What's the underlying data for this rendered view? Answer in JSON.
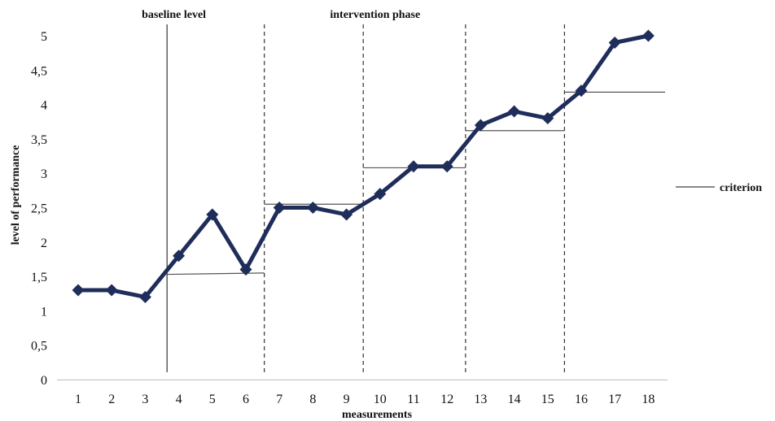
{
  "chart_data": {
    "type": "line",
    "title": "",
    "xlabel": "measurements",
    "ylabel": "level of performance",
    "x": [
      "1",
      "2",
      "3",
      "4",
      "5",
      "6",
      "7",
      "8",
      "9",
      "10",
      "11",
      "12",
      "13",
      "14",
      "15",
      "16",
      "17",
      "18"
    ],
    "y_ticks": [
      "0",
      "0,5",
      "1",
      "1,5",
      "2",
      "2,5",
      "3",
      "3,5",
      "4",
      "4,5",
      "5"
    ],
    "ylim": [
      0,
      5
    ],
    "grid": false,
    "series": [
      {
        "values": [
          1.3,
          1.3,
          1.2,
          1.8,
          2.4,
          1.6,
          2.5,
          2.5,
          2.4,
          2.7,
          3.1,
          3.1,
          3.7,
          3.9,
          3.8,
          4.2,
          4.9,
          5.0
        ],
        "color": "#1f2d5a",
        "marker": "diamond"
      }
    ],
    "phase_labels": [
      {
        "text": "baseline level",
        "at_x": 4.0
      },
      {
        "text": "intervention phase",
        "at_x": 10.0
      }
    ],
    "phase_boundaries": [
      {
        "x": 3.65,
        "style": "solid"
      },
      {
        "x": 6.55,
        "style": "dashed"
      },
      {
        "x": 9.5,
        "style": "dashed"
      },
      {
        "x": 12.55,
        "style": "dashed"
      },
      {
        "x": 15.5,
        "style": "dashed"
      }
    ],
    "criterion_lines": [
      {
        "x_start": 3.65,
        "x_end": 6.55,
        "y_start": 1.53,
        "y_end": 1.55
      },
      {
        "x_start": 6.55,
        "x_end": 9.5,
        "y_start": 2.55,
        "y_end": 2.55
      },
      {
        "x_start": 9.5,
        "x_end": 12.55,
        "y_start": 3.08,
        "y_end": 3.08
      },
      {
        "x_start": 12.55,
        "x_end": 15.5,
        "y_start": 3.62,
        "y_end": 3.62
      },
      {
        "x_start": 15.5,
        "x_end": 18.5,
        "y_start": 4.18,
        "y_end": 4.18
      }
    ],
    "legend": {
      "label": "criterion",
      "position": "right"
    },
    "colors": {
      "line": "#1f2d5a",
      "criterion": "#555555",
      "boundary": "#333333",
      "axis": "#bbbbbb"
    }
  }
}
